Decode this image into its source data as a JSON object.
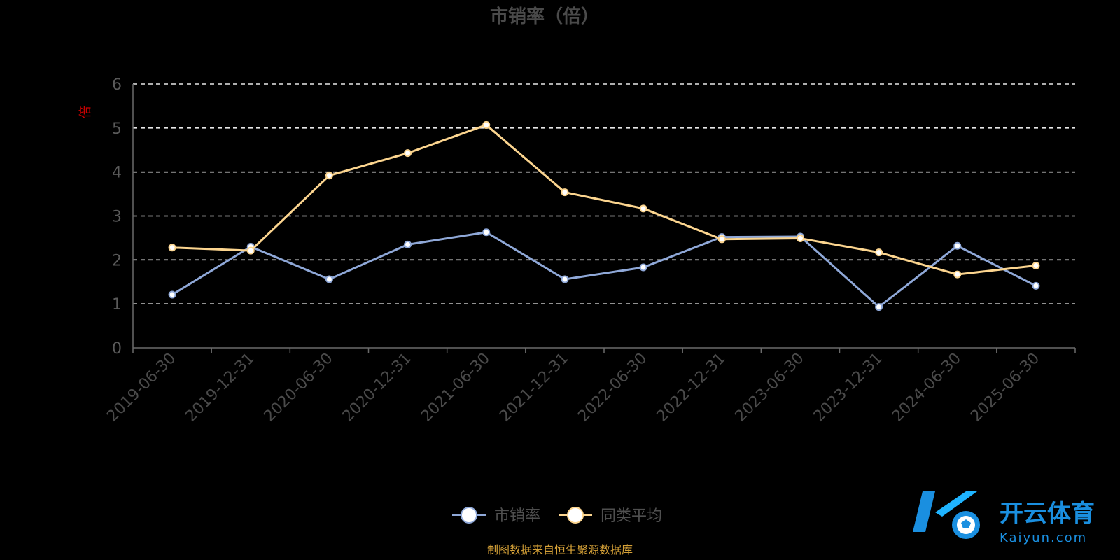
{
  "chart_data": {
    "type": "line",
    "title": "市销率（倍）",
    "ylabel": "倍",
    "xlabel": "",
    "ylim": [
      0,
      6
    ],
    "yticks": [
      0,
      1,
      2,
      3,
      4,
      5,
      6
    ],
    "grid": true,
    "legend_position": "bottom",
    "categories": [
      "2019-06-30",
      "2019-12-31",
      "2020-06-30",
      "2020-12-31",
      "2021-06-30",
      "2021-12-31",
      "2022-06-30",
      "2022-12-31",
      "2023-06-30",
      "2023-12-31",
      "2024-06-30",
      "2025-06-30"
    ],
    "series": [
      {
        "name": "市销率",
        "color": "#8fa8d8",
        "values": [
          1.21,
          2.3,
          1.56,
          2.35,
          2.63,
          1.56,
          1.83,
          2.52,
          2.53,
          0.93,
          2.32,
          1.41
        ]
      },
      {
        "name": "同类平均",
        "color": "#fcd58f",
        "values": [
          2.28,
          2.21,
          3.92,
          4.43,
          5.07,
          3.54,
          3.17,
          2.47,
          2.49,
          2.17,
          1.67,
          1.87
        ]
      }
    ]
  },
  "source_text": "制图数据来自恒生聚源数据库",
  "watermark": {
    "brand_cn": "开云体育",
    "brand_en": "Kaiyun.com",
    "color": "#1a8fe0"
  }
}
